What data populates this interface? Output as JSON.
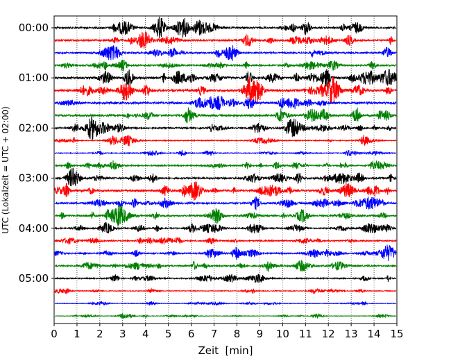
{
  "chart_data": {
    "type": "line",
    "title": "",
    "xlabel": "Zeit  [min]",
    "ylabel": "UTC (Lokalzeit = UTC + 02:00)",
    "xlim": [
      0,
      15
    ],
    "x_ticks": [
      "0",
      "1",
      "2",
      "3",
      "4",
      "5",
      "6",
      "7",
      "8",
      "9",
      "10",
      "11",
      "12",
      "13",
      "14",
      "15"
    ],
    "y_tick_labels": [
      "00:00",
      "01:00",
      "02:00",
      "03:00",
      "04:00",
      "05:00"
    ],
    "trace_interval_min": 15,
    "grid": "vertical dotted",
    "trace_colors": [
      "#000000",
      "#ff0000",
      "#0000ff",
      "#008000"
    ],
    "traces": [
      {
        "start": "00:00",
        "amplitude": 0.6
      },
      {
        "start": "00:15",
        "amplitude": 0.55
      },
      {
        "start": "00:30",
        "amplitude": 0.55
      },
      {
        "start": "00:45",
        "amplitude": 0.5
      },
      {
        "start": "01:00",
        "amplitude": 0.7
      },
      {
        "start": "01:15",
        "amplitude": 0.75
      },
      {
        "start": "01:30",
        "amplitude": 0.7
      },
      {
        "start": "01:45",
        "amplitude": 0.65
      },
      {
        "start": "02:00",
        "amplitude": 0.55
      },
      {
        "start": "02:15",
        "amplitude": 0.3
      },
      {
        "start": "02:30",
        "amplitude": 0.3
      },
      {
        "start": "02:45",
        "amplitude": 0.4
      },
      {
        "start": "03:00",
        "amplitude": 0.6
      },
      {
        "start": "03:15",
        "amplitude": 0.65
      },
      {
        "start": "03:30",
        "amplitude": 0.6
      },
      {
        "start": "03:45",
        "amplitude": 0.55
      },
      {
        "start": "04:00",
        "amplitude": 0.45
      },
      {
        "start": "04:15",
        "amplitude": 0.45
      },
      {
        "start": "04:30",
        "amplitude": 0.45
      },
      {
        "start": "04:45",
        "amplitude": 0.5
      },
      {
        "start": "05:00",
        "amplitude": 0.4
      },
      {
        "start": "05:15",
        "amplitude": 0.25
      },
      {
        "start": "05:30",
        "amplitude": 0.2
      },
      {
        "start": "05:45",
        "amplitude": 0.15
      }
    ]
  }
}
